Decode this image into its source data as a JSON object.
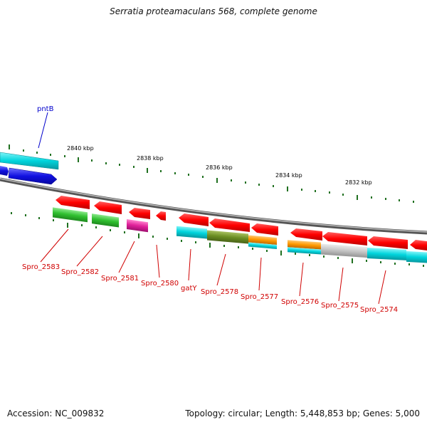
{
  "header": {
    "title": "Serratia proteamaculans 568, complete genome"
  },
  "footer": {
    "accession": "Accession: NC_009832",
    "summary": "Topology: circular; Length: 5,448,853 bp; Genes: 5,000"
  },
  "scale_labels": [
    "2840 kbp",
    "2838 kbp",
    "2836 kbp",
    "2834 kbp",
    "2832 kbp"
  ],
  "genes": {
    "pntB": "pntB",
    "spro_2583": "Spro_2583",
    "spro_2582": "Spro_2582",
    "spro_2581": "Spro_2581",
    "spro_2580": "Spro_2580",
    "gatY": "gatY",
    "spro_2578": "Spro_2578",
    "spro_2577": "Spro_2577",
    "spro_2576": "Spro_2576",
    "spro_2575": "Spro_2575",
    "spro_2574": "Spro_2574"
  },
  "colors": {
    "forward_strand": "#ff0000",
    "label_red": "#d00000",
    "label_blue": "#0000cc",
    "tick_green": "#207020",
    "cyan": "#00d0d8",
    "green": "#30c030",
    "magenta": "#e0209a",
    "olive": "#6b8e23",
    "orange": "#ff9900",
    "grey": "#c0c0c0",
    "blue": "#1010e0"
  }
}
